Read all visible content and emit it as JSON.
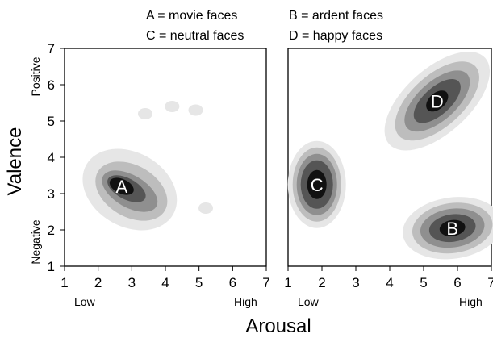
{
  "legend": [
    "A = movie faces",
    "B = ardent faces",
    "C = neutral faces",
    "D = happy faces"
  ],
  "chart_data": {
    "type": "heatmap",
    "description_axis": {
      "xlabel": "Arousal",
      "ylabel": "Valence",
      "xlim": [
        1,
        7
      ],
      "ylim": [
        1,
        7
      ],
      "x_ticks": [
        1,
        2,
        3,
        4,
        5,
        6,
        7
      ],
      "y_ticks": [
        1,
        2,
        3,
        4,
        5,
        6,
        7
      ],
      "x_low_label": "Low",
      "x_high_label": "High",
      "y_high_label": "Positive",
      "y_low_label": "Negative"
    },
    "colors": {
      "levels": [
        "#e6e6e6",
        "#bdbdbd",
        "#8f8f8f",
        "#555555",
        "#111111"
      ]
    },
    "panels": [
      {
        "clusters": [
          {
            "label": "A",
            "x": 2.7,
            "y": 3.2
          }
        ],
        "faint_blobs": [
          {
            "x": 4.2,
            "y": 5.4
          },
          {
            "x": 3.4,
            "y": 5.2
          },
          {
            "x": 4.9,
            "y": 5.3
          },
          {
            "x": 5.2,
            "y": 2.6
          }
        ]
      },
      {
        "clusters": [
          {
            "label": "C",
            "x": 1.85,
            "y": 3.25
          },
          {
            "label": "D",
            "x": 5.4,
            "y": 5.55
          },
          {
            "label": "B",
            "x": 5.85,
            "y": 2.05
          }
        ]
      }
    ]
  }
}
